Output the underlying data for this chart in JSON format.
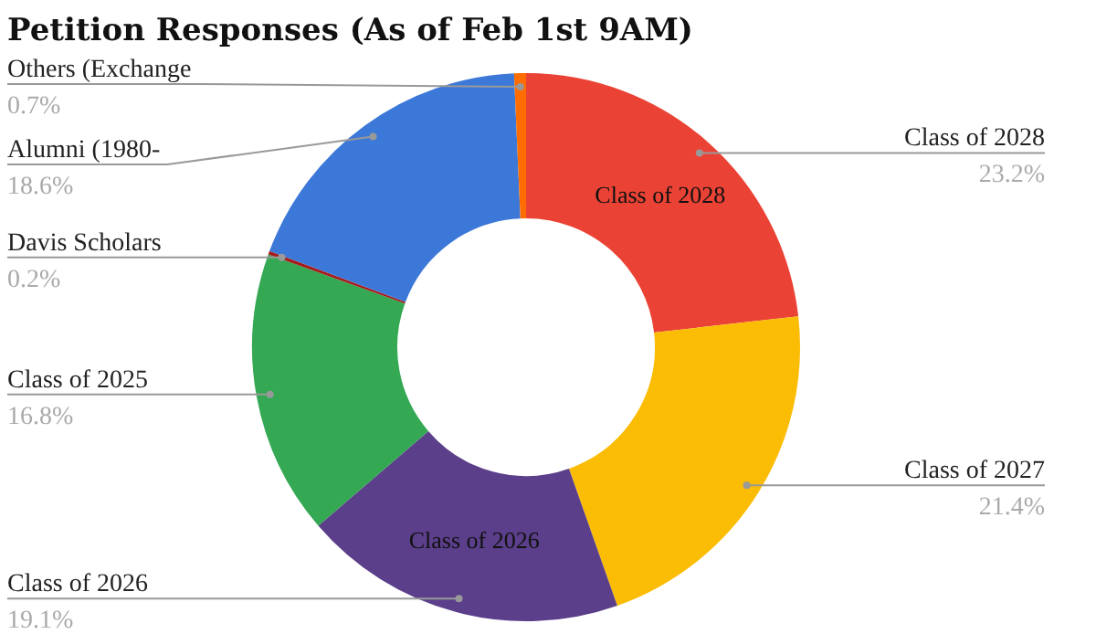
{
  "chart_data": {
    "type": "donut",
    "title": "Petition Responses (As of Feb 1st 9AM)",
    "categories": [
      "Class of 2028",
      "Class of 2027",
      "Class of 2026",
      "Class of 2025",
      "Davis Scholars",
      "Alumni (1980-",
      "Others (Exchange"
    ],
    "values": [
      23.2,
      21.4,
      19.1,
      16.8,
      0.2,
      18.6,
      0.7
    ],
    "value_labels": [
      "23.2%",
      "21.4%",
      "19.1%",
      "16.8%",
      "0.2%",
      "18.6%",
      "0.7%"
    ],
    "colors": [
      "#ea4335",
      "#fbbc04",
      "#5b3f8a",
      "#34a853",
      "#a51c1c",
      "#3c78d8",
      "#ff6d01"
    ],
    "annotations": [
      {
        "text": "Class of 2028",
        "x": "Class of 2028"
      },
      {
        "text": "Class of 2026",
        "x": "Class of 2026"
      }
    ],
    "legend": false
  }
}
